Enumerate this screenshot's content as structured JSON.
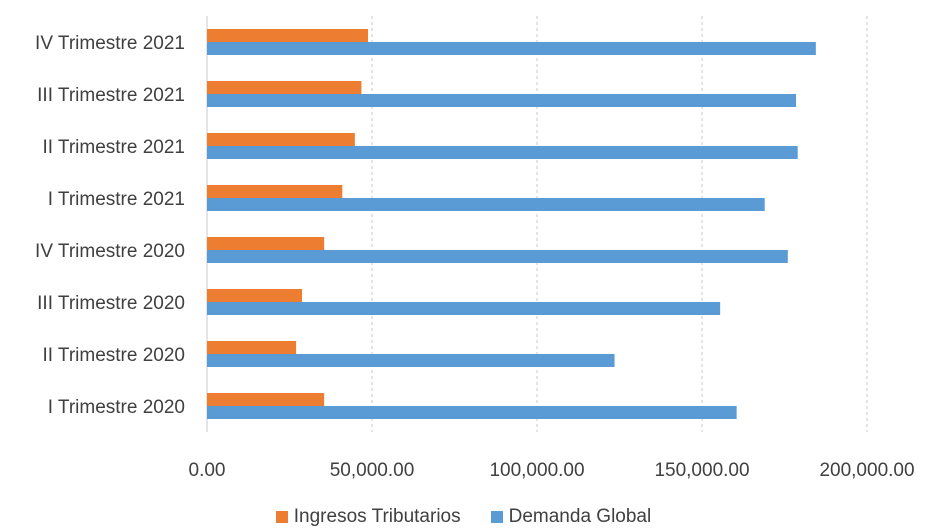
{
  "chart_data": {
    "type": "bar",
    "orientation": "horizontal",
    "categories": [
      "I Trimestre 2020",
      "II Trimestre 2020",
      "III Trimestre 2020",
      "IV Trimestre 2020",
      "I Trimestre 2021",
      "II Trimestre 2021",
      "III Trimestre 2021",
      "IV Trimestre 2021"
    ],
    "series": [
      {
        "name": "Ingresos Tributarios",
        "color": "#ED7D31",
        "values": [
          35500,
          27000,
          28800,
          35500,
          41000,
          44800,
          46800,
          48800
        ]
      },
      {
        "name": "Demanda Global",
        "color": "#5B9BD5",
        "values": [
          160500,
          123500,
          155500,
          176000,
          169000,
          179000,
          178500,
          184500
        ]
      }
    ],
    "x_ticks": [
      "0.00",
      "50,000.00",
      "100,000.00",
      "150,000.00",
      "200,000.00"
    ],
    "xlim": [
      0,
      200000
    ],
    "grid": "vertical dashed",
    "legend_position": "bottom"
  }
}
